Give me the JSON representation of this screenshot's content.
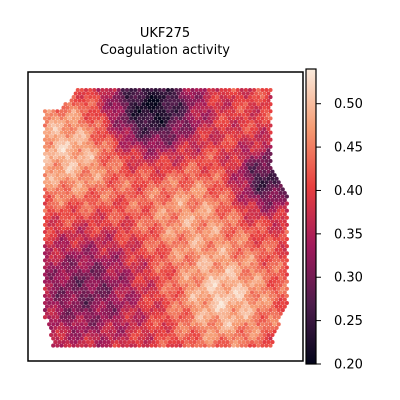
{
  "chart_data": {
    "type": "heatmap",
    "title": "UKF275",
    "subtitle": "Coagulation activity",
    "xlabel": "",
    "ylabel": "",
    "grid": false,
    "axis_ticks": false,
    "colormap": "rocket",
    "colormap_stops": [
      "#03051a",
      "#4c1d4b",
      "#a11a5b",
      "#e83f3f",
      "#f69c73",
      "#faebdd"
    ],
    "colorbar": {
      "range": [
        0.2,
        0.54
      ],
      "ticks": [
        0.2,
        0.25,
        0.3,
        0.35,
        0.4,
        0.45,
        0.5
      ],
      "tick_labels": [
        "0.20",
        "0.25",
        "0.30",
        "0.35",
        "0.40",
        "0.45",
        "0.50"
      ]
    },
    "tissue": {
      "value_mean": 0.4,
      "dark_regions": [
        {
          "location": "top-center",
          "value": 0.21
        },
        {
          "location": "right-upper",
          "value": 0.25
        },
        {
          "location": "bottom-left",
          "value": 0.3
        }
      ],
      "light_regions": [
        {
          "location": "left-upper",
          "value": 0.5
        },
        {
          "location": "center",
          "value": 0.47
        },
        {
          "location": "bottom-right",
          "value": 0.5
        }
      ]
    }
  }
}
